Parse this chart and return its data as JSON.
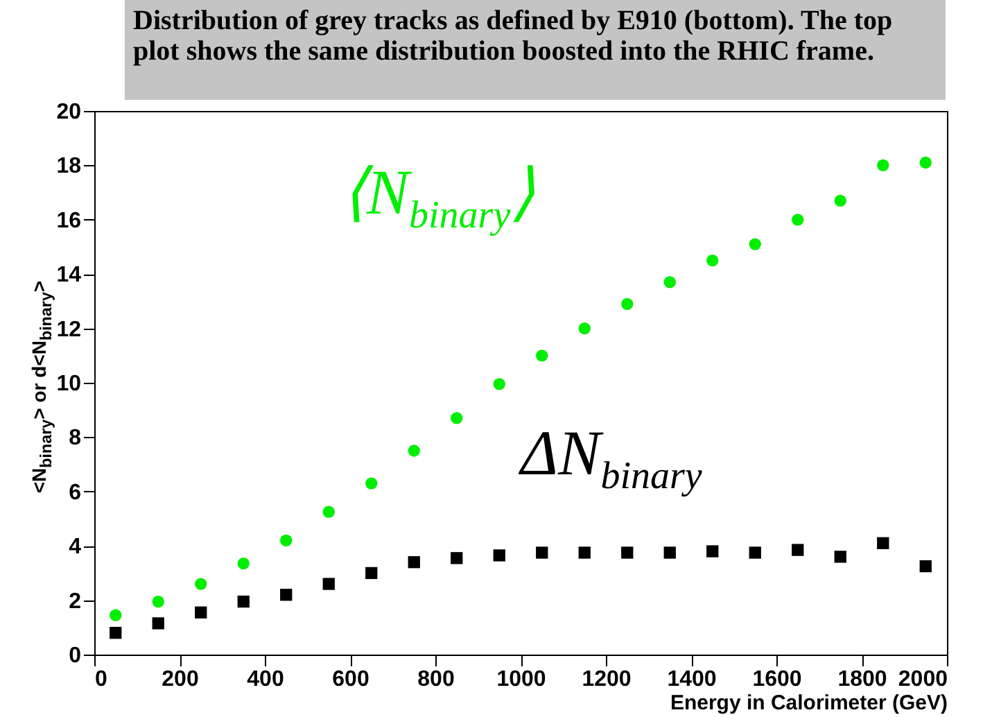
{
  "chart_data": {
    "type": "scatter",
    "title": "Distribution of grey tracks as defined by E910 (bottom). The top plot shows the same distribution boosted into the RHIC frame.",
    "xlabel": "Energy in Calorimeter (GeV)",
    "ylabel": "<N$_{binary}$> or d<N$_{binary}$>",
    "x": [
      50,
      150,
      250,
      350,
      450,
      550,
      650,
      750,
      850,
      950,
      1050,
      1150,
      1250,
      1350,
      1450,
      1550,
      1650,
      1750,
      1850,
      1950
    ],
    "series": [
      {
        "name": "⟨N$_{binary}$⟩",
        "color": "#00ee00",
        "marker": "circle",
        "values": [
          1.45,
          1.95,
          2.6,
          3.35,
          4.2,
          5.25,
          6.3,
          7.5,
          8.7,
          9.95,
          11.0,
          12.0,
          12.9,
          13.7,
          14.5,
          15.1,
          16.0,
          16.7,
          18.0,
          18.1
        ]
      },
      {
        "name": "ΔN$_{binary}$",
        "color": "#000000",
        "marker": "square",
        "values": [
          0.8,
          1.15,
          1.55,
          1.95,
          2.2,
          2.6,
          3.0,
          3.4,
          3.55,
          3.65,
          3.75,
          3.75,
          3.75,
          3.75,
          3.8,
          3.75,
          3.85,
          3.6,
          4.1,
          3.25
        ]
      }
    ],
    "xlim": [
      0,
      2000
    ],
    "xticks": [
      0,
      200,
      400,
      600,
      800,
      1000,
      1200,
      1400,
      1600,
      1800,
      2000
    ],
    "ylim": [
      0,
      20
    ],
    "yticks": [
      0,
      2,
      4,
      6,
      8,
      10,
      12,
      14,
      16,
      18,
      20
    ]
  }
}
